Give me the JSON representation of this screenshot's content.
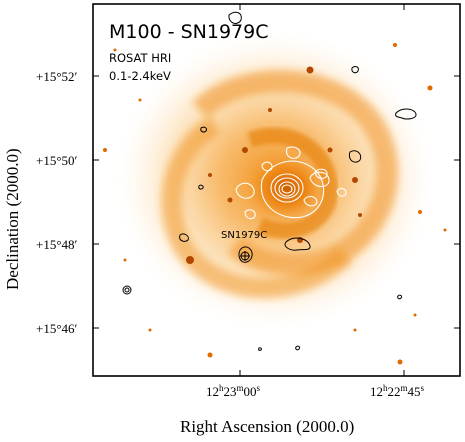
{
  "title": "M100 - SN1979C",
  "instrument": "ROSAT HRI",
  "energy_band": "0.1-2.4keV",
  "source_label": "SN1979C",
  "x_axis": {
    "label": "Right Ascension (2000.0)",
    "ticks": [
      {
        "h": "12",
        "m": "23",
        "s": "00"
      },
      {
        "h": "12",
        "m": "22",
        "s": "45"
      }
    ]
  },
  "y_axis": {
    "label": "Declination (2000.0)",
    "ticks": [
      "+15°52′",
      "+15°50′",
      "+15°48′",
      "+15°46′"
    ]
  },
  "colors": {
    "galaxy_core": "#f08a10",
    "galaxy_mid": "#f7b34a",
    "galaxy_outer": "#fde2b8",
    "contour_inner": "#ffffff",
    "contour_outer": "#000000",
    "frame": "#000000"
  }
}
